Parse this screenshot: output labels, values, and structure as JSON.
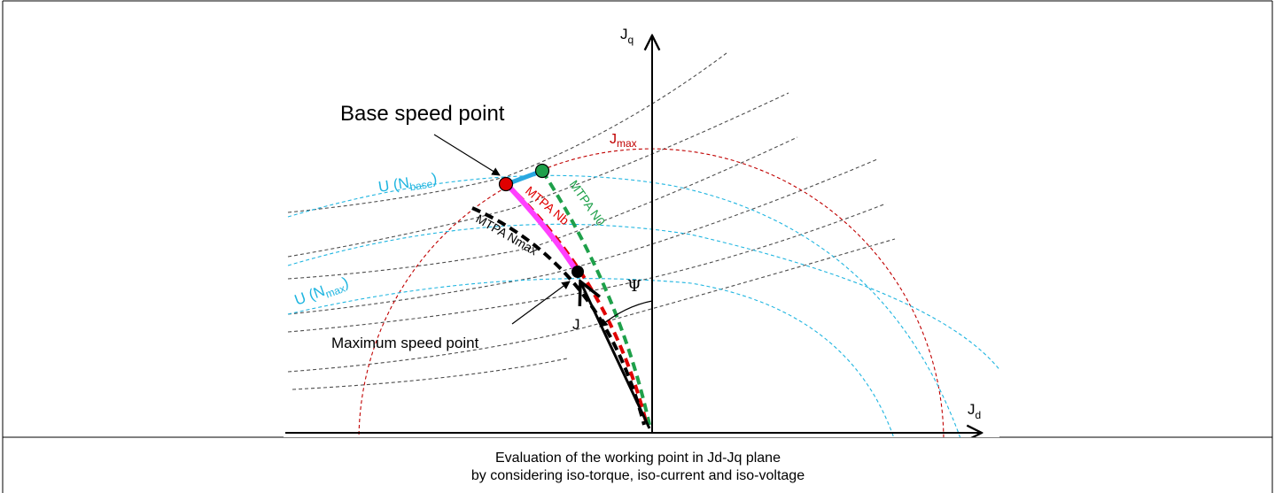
{
  "diagram": {
    "axis_labels": {
      "jq_main": "J",
      "jq_sub": "q",
      "jd_main": "J",
      "jd_sub": "d"
    },
    "labels": {
      "base_speed_point": "Base speed point",
      "max_speed_point": "Maximum speed point",
      "jmax_main": "J",
      "jmax_sub": "max",
      "u_nbase_main": "U (N",
      "u_nbase_sub": "base",
      "u_nbase_tail": ")",
      "u_nmax_main": "U (N",
      "u_nmax_sub": "max",
      "u_nmax_tail": ")",
      "mtpa_n0": "MTPA N0",
      "mtpa_nb": "MTPA Nb",
      "mtpa_nmax": "MTPA Nmax",
      "psi": "Ψ",
      "current_vector": "J"
    },
    "colors": {
      "axis": "#000000",
      "iso_torque": "#4d4d4d",
      "iso_current": "#c00000",
      "iso_voltage": "#1fb5e0",
      "mtpa_n0": "#1ea04a",
      "mtpa_nb": "#e00000",
      "mtpa_nmax": "#000000",
      "magenta_segment": "#ff40ff",
      "blue_segment": "#2aa8e0",
      "base_point": "#e00000",
      "n0_point": "#1ea04a",
      "max_point": "#000000"
    }
  },
  "caption": {
    "line1": "Evaluation of the working point in Jd-Jq plane",
    "line2": "by considering iso-torque, iso-current and iso-voltage"
  }
}
